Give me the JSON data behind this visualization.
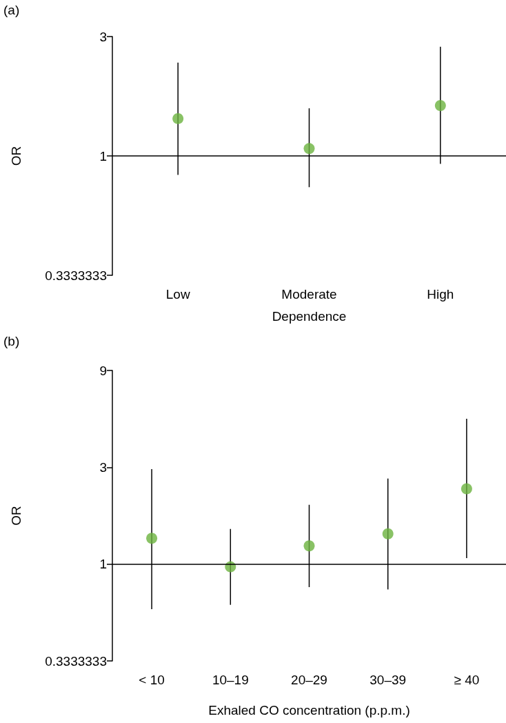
{
  "chart_data": [
    {
      "type": "scatter",
      "title": "(a)",
      "xlabel": "Dependence",
      "ylabel": "OR",
      "categories": [
        "Low",
        "Moderate",
        "High"
      ],
      "series": [
        {
          "color": "#6cb33f",
          "values": [
            1.41,
            1.07,
            1.59
          ],
          "errors": [
            [
              0.84,
              2.36
            ],
            [
              0.75,
              1.55
            ],
            [
              0.93,
              2.73
            ]
          ]
        }
      ],
      "log": "y",
      "ylim": [
        0.3333333,
        3
      ],
      "yticks": [
        0.3333333,
        1,
        3
      ],
      "marker": "circle",
      "grid": false,
      "ref_lines": [
        {
          "axis": "y",
          "value": 1,
          "color": "#000000"
        }
      ]
    },
    {
      "type": "scatter",
      "title": "(b)",
      "xlabel": "Exhaled CO concentration (p.p.m.)",
      "ylabel": "OR",
      "categories": [
        "< 10",
        "10–19",
        "20–29",
        "30–39",
        "≥ 40"
      ],
      "series": [
        {
          "color": "#6cb33f",
          "values": [
            1.34,
            0.97,
            1.23,
            1.41,
            2.35
          ],
          "errors": [
            [
              0.6,
              2.94
            ],
            [
              0.63,
              1.49
            ],
            [
              0.77,
              1.96
            ],
            [
              0.75,
              2.64
            ],
            [
              1.07,
              5.2
            ]
          ]
        }
      ],
      "log": "y",
      "ylim": [
        0.3333333,
        9
      ],
      "yticks": [
        0.3333333,
        1,
        3,
        9
      ],
      "marker": "circle",
      "grid": false,
      "ref_lines": [
        {
          "axis": "y",
          "value": 1,
          "color": "#000000"
        }
      ]
    }
  ]
}
